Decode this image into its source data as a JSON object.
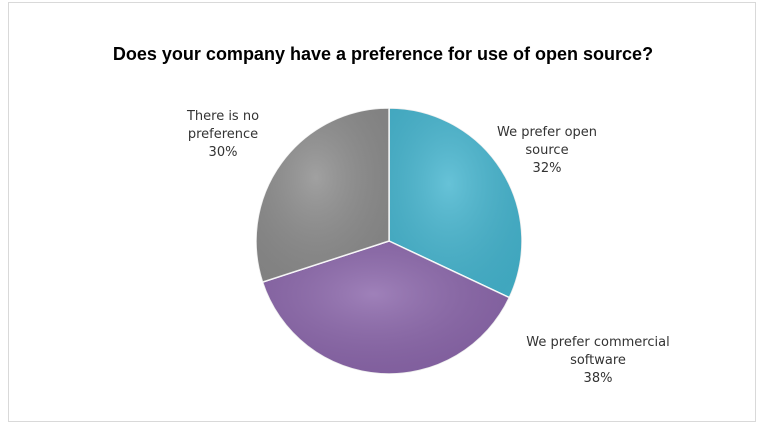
{
  "chart_data": {
    "type": "pie",
    "title": "Does your company have a preference for use of open source?",
    "slices": [
      {
        "label_lines": [
          "We prefer open",
          "source"
        ],
        "value": 32,
        "value_label": "32%",
        "color": "#45b5cf"
      },
      {
        "label_lines": [
          "We prefer commercial",
          "software"
        ],
        "value": 38,
        "value_label": "38%",
        "color": "#8a65aa"
      },
      {
        "label_lines": [
          "There is no",
          "preference"
        ],
        "value": 30,
        "value_label": "30%",
        "color": "#8c8c8c"
      }
    ],
    "start_angle": "12 o'clock",
    "direction": "clockwise",
    "legend": "none",
    "data_labels": "outside"
  }
}
